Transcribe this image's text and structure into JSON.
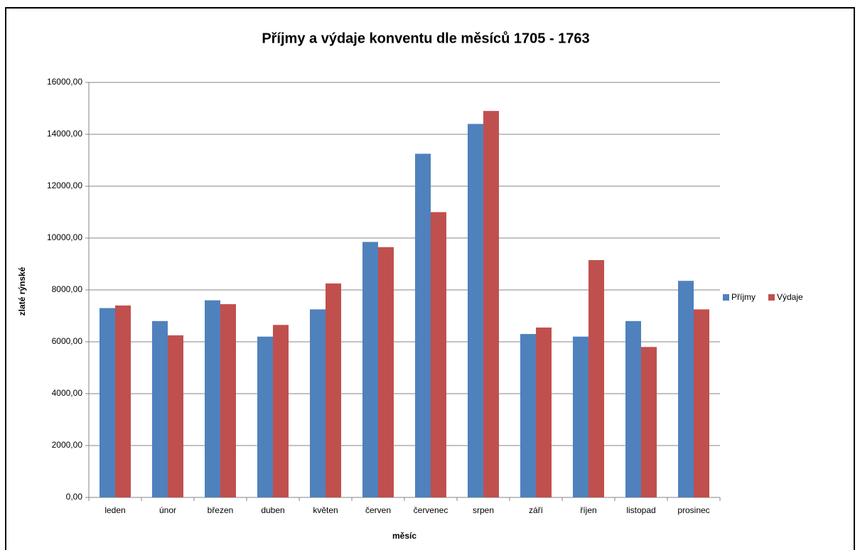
{
  "chart_data": {
    "type": "bar",
    "title": "Příjmy a výdaje konventu dle měsíců 1705 - 1763",
    "x_label": "měsíc",
    "y_label": "zlaté rýnské",
    "categories": [
      "leden",
      "únor",
      "březen",
      "duben",
      "květen",
      "červen",
      "červenec",
      "srpen",
      "září",
      "říjen",
      "listopad",
      "prosinec"
    ],
    "series": [
      {
        "name": "Příjmy",
        "color": "#4f81bd",
        "values": [
          7300,
          6800,
          7600,
          6200,
          7250,
          9850,
          13250,
          14400,
          6300,
          6200,
          6800,
          8350
        ]
      },
      {
        "name": "Výdaje",
        "color": "#c0504d",
        "values": [
          7400,
          6250,
          7450,
          6650,
          8250,
          9650,
          11000,
          14900,
          6550,
          9150,
          5800,
          7250
        ]
      }
    ],
    "ylim": [
      0,
      16000
    ],
    "yticks": [
      {
        "value": 0,
        "label": "0,00"
      },
      {
        "value": 2000,
        "label": "2000,00"
      },
      {
        "value": 4000,
        "label": "4000,00"
      },
      {
        "value": 6000,
        "label": "6000,00"
      },
      {
        "value": 8000,
        "label": "8000,00"
      },
      {
        "value": 10000,
        "label": "10000,00"
      },
      {
        "value": 12000,
        "label": "12000,00"
      },
      {
        "value": 14000,
        "label": "14000,00"
      },
      {
        "value": 16000,
        "label": "16000,00"
      }
    ],
    "grid": true,
    "legend_position": "right"
  }
}
